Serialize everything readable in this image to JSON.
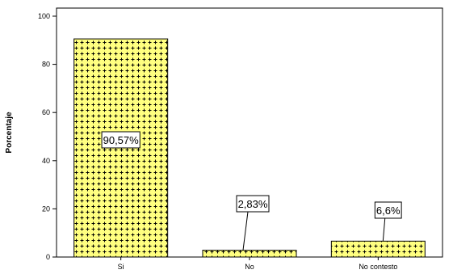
{
  "chart_data": {
    "type": "bar",
    "categories": [
      "Si",
      "No",
      "No contesto"
    ],
    "values": [
      90.57,
      2.83,
      6.6
    ],
    "data_labels": [
      "90,57%",
      "2,83%",
      "6,6%"
    ],
    "xlabel": "",
    "ylabel": "Porcentaje",
    "ylim": [
      0,
      100
    ],
    "yticks": [
      "0",
      "20",
      "40",
      "60",
      "80",
      "100"
    ],
    "grid": false,
    "bar_fill": "#ffff80",
    "bar_pattern_color": "#000000"
  }
}
